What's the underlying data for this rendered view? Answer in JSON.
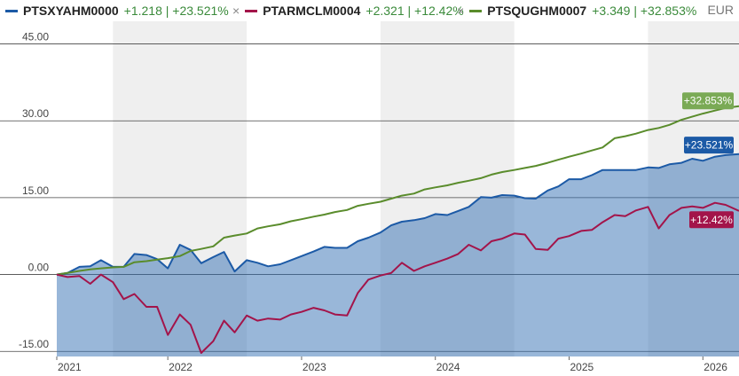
{
  "legend": [
    {
      "name": "PTSXYAHM0000",
      "change": "+1.218",
      "pct": "+23.521%",
      "color": "#1c5aa6"
    },
    {
      "name": "PTARMCLM0004",
      "change": "+2.321",
      "pct": "+12.42%",
      "color": "#a3144a"
    },
    {
      "name": "PTSQUGHM0007",
      "change": "+3.349",
      "pct": "+32.853%",
      "color": "#5a8c2c"
    }
  ],
  "currency": "EUR",
  "chart_data": {
    "type": "line",
    "ylim": [
      -16,
      47
    ],
    "y_ticks": [
      45,
      30,
      15,
      0,
      -15
    ],
    "y_tick_labels": [
      "45.00",
      "30.00",
      "15.00",
      "0.00",
      "-15.00"
    ],
    "x_labels": [
      "2021",
      "2022",
      "2023",
      "2024",
      "2025",
      "2026"
    ],
    "x_label_positions": [
      2021.0,
      2021.83,
      2022.83,
      2023.83,
      2024.83,
      2025.83
    ],
    "xlim": [
      2021.0,
      2026.1
    ],
    "shaded_bands": [
      [
        2021.42,
        2022.42
      ],
      [
        2023.42,
        2024.42
      ],
      [
        2025.42,
        2026.1
      ]
    ],
    "series": [
      {
        "name": "PTSXYAHM0000",
        "color": "#1c5aa6",
        "area": true,
        "end_label": "+23.521%",
        "x": [
          2021.0,
          2021.08,
          2021.17,
          2021.25,
          2021.33,
          2021.42,
          2021.5,
          2021.58,
          2021.67,
          2021.75,
          2021.83,
          2021.92,
          2022.0,
          2022.08,
          2022.17,
          2022.25,
          2022.33,
          2022.42,
          2022.5,
          2022.58,
          2022.67,
          2022.75,
          2022.83,
          2022.92,
          2023.0,
          2023.08,
          2023.17,
          2023.25,
          2023.33,
          2023.42,
          2023.5,
          2023.58,
          2023.67,
          2023.75,
          2023.83,
          2023.92,
          2024.0,
          2024.08,
          2024.17,
          2024.25,
          2024.33,
          2024.42,
          2024.5,
          2024.58,
          2024.67,
          2024.75,
          2024.83,
          2024.92,
          2025.0,
          2025.08,
          2025.17,
          2025.25,
          2025.33,
          2025.42,
          2025.5,
          2025.58,
          2025.67,
          2025.75,
          2025.83,
          2025.92,
          2026.0,
          2026.1
        ],
        "values": [
          0,
          0.3,
          1.5,
          1.6,
          2.8,
          1.5,
          1.5,
          4.0,
          3.8,
          3.0,
          1.2,
          5.8,
          4.8,
          2.2,
          3.4,
          4.4,
          0.6,
          2.8,
          2.3,
          1.6,
          2.0,
          2.8,
          3.6,
          4.5,
          5.4,
          5.2,
          5.2,
          6.5,
          7.2,
          8.2,
          9.6,
          10.3,
          10.6,
          11.0,
          11.8,
          11.6,
          12.4,
          13.2,
          15.1,
          15.0,
          15.5,
          15.4,
          14.9,
          14.8,
          16.4,
          17.2,
          18.6,
          18.6,
          19.4,
          20.4,
          20.4,
          20.4,
          20.4,
          20.9,
          20.8,
          21.5,
          21.8,
          22.6,
          22.2,
          23.0,
          23.3,
          23.521
        ]
      },
      {
        "name": "PTARMCLM0004",
        "color": "#a3144a",
        "area": false,
        "end_label": "+12.42%",
        "x": [
          2021.0,
          2021.08,
          2021.17,
          2021.25,
          2021.33,
          2021.42,
          2021.5,
          2021.58,
          2021.67,
          2021.75,
          2021.83,
          2021.92,
          2022.0,
          2022.08,
          2022.17,
          2022.25,
          2022.33,
          2022.42,
          2022.5,
          2022.58,
          2022.67,
          2022.75,
          2022.83,
          2022.92,
          2023.0,
          2023.08,
          2023.17,
          2023.25,
          2023.33,
          2023.42,
          2023.5,
          2023.58,
          2023.67,
          2023.75,
          2023.83,
          2023.92,
          2024.0,
          2024.08,
          2024.17,
          2024.25,
          2024.33,
          2024.42,
          2024.5,
          2024.58,
          2024.67,
          2024.75,
          2024.83,
          2024.92,
          2025.0,
          2025.08,
          2025.17,
          2025.25,
          2025.33,
          2025.42,
          2025.5,
          2025.58,
          2025.67,
          2025.75,
          2025.83,
          2025.92,
          2026.0,
          2026.1
        ],
        "values": [
          0,
          -0.5,
          -0.3,
          -1.8,
          0,
          -1.5,
          -4.8,
          -3.8,
          -6.3,
          -6.3,
          -11.8,
          -7.8,
          -9.8,
          -15.3,
          -13.0,
          -9.0,
          -11.3,
          -8.0,
          -9.0,
          -8.6,
          -8.8,
          -7.8,
          -7.3,
          -6.5,
          -7.0,
          -7.8,
          -8.0,
          -3.6,
          -1.0,
          -0.2,
          0.3,
          2.3,
          0.7,
          1.6,
          2.3,
          3.1,
          4.0,
          5.8,
          4.7,
          6.5,
          7.0,
          8.0,
          7.8,
          5.0,
          4.8,
          7.0,
          7.5,
          8.5,
          8.7,
          10.2,
          11.6,
          11.4,
          12.5,
          13.2,
          9.0,
          11.6,
          13.0,
          13.3,
          13.0,
          14.0,
          13.6,
          12.42
        ]
      },
      {
        "name": "PTSQUGHM0007",
        "color": "#5a8c2c",
        "area": false,
        "end_label": "+32.853%",
        "x": [
          2021.0,
          2021.08,
          2021.17,
          2021.25,
          2021.33,
          2021.42,
          2021.5,
          2021.58,
          2021.67,
          2021.75,
          2021.83,
          2021.92,
          2022.0,
          2022.08,
          2022.17,
          2022.25,
          2022.33,
          2022.42,
          2022.5,
          2022.58,
          2022.67,
          2022.75,
          2022.83,
          2022.92,
          2023.0,
          2023.08,
          2023.17,
          2023.25,
          2023.33,
          2023.42,
          2023.5,
          2023.58,
          2023.67,
          2023.75,
          2023.83,
          2023.92,
          2024.0,
          2024.08,
          2024.17,
          2024.25,
          2024.33,
          2024.42,
          2024.5,
          2024.58,
          2024.67,
          2024.75,
          2024.83,
          2024.92,
          2025.0,
          2025.08,
          2025.17,
          2025.25,
          2025.33,
          2025.42,
          2025.5,
          2025.58,
          2025.67,
          2025.75,
          2025.83,
          2025.92,
          2026.0,
          2026.1
        ],
        "values": [
          0,
          0.3,
          0.7,
          1.0,
          1.2,
          1.4,
          1.5,
          2.4,
          2.6,
          2.9,
          3.2,
          3.6,
          4.6,
          5.0,
          5.5,
          7.2,
          7.6,
          8.0,
          9.0,
          9.4,
          9.8,
          10.4,
          10.8,
          11.3,
          11.7,
          12.2,
          12.6,
          13.4,
          13.8,
          14.2,
          14.8,
          15.4,
          15.8,
          16.6,
          17.0,
          17.4,
          17.9,
          18.3,
          18.8,
          19.5,
          20.0,
          20.4,
          20.8,
          21.2,
          21.8,
          22.4,
          23.0,
          23.6,
          24.2,
          24.8,
          26.6,
          27.0,
          27.5,
          28.2,
          28.6,
          29.2,
          30.2,
          30.8,
          31.4,
          32.0,
          32.5,
          32.853
        ]
      }
    ]
  }
}
